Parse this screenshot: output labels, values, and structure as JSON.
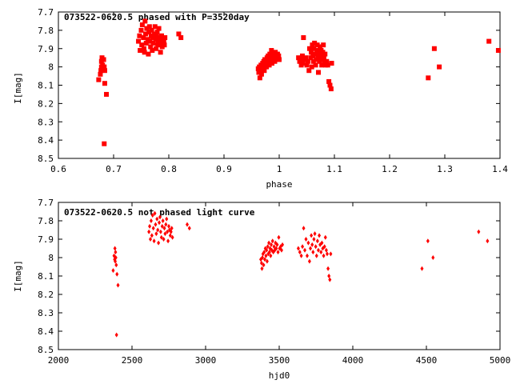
{
  "colors": {
    "points": "#ff0000",
    "frame": "#000000",
    "background": "#ffffff"
  },
  "chart_data": [
    {
      "type": "scatter",
      "title": "073522-0620.5 phased with P=3520day",
      "xlabel": "phase",
      "ylabel": "I[mag]",
      "xlim": [
        0.6,
        1.4
      ],
      "ylim": [
        8.5,
        7.7
      ],
      "y_inverted": true,
      "xticks": [
        "0.6",
        "0.7",
        "0.8",
        "0.9",
        "1",
        "1.1",
        "1.2",
        "1.3",
        "1.4"
      ],
      "yticks": [
        "7.7",
        "7.8",
        "7.9",
        "8",
        "8.1",
        "8.2",
        "8.3",
        "8.4",
        "8.5"
      ],
      "marker": "filled-square",
      "grid": false,
      "series": [
        {
          "points": [
            [
              0.673,
              8.07
            ],
            [
              0.676,
              8.04
            ],
            [
              0.677,
              8.02
            ],
            [
              0.678,
              8.0
            ],
            [
              0.678,
              7.97
            ],
            [
              0.679,
              7.95
            ],
            [
              0.68,
              7.99
            ],
            [
              0.68,
              8.01
            ],
            [
              0.682,
              7.96
            ],
            [
              0.683,
              8.0
            ],
            [
              0.684,
              8.02
            ],
            [
              0.684,
              8.09
            ],
            [
              0.687,
              8.15
            ],
            [
              0.683,
              8.42
            ],
            [
              0.745,
              7.86
            ],
            [
              0.747,
              7.83
            ],
            [
              0.748,
              7.91
            ],
            [
              0.75,
              7.8
            ],
            [
              0.751,
              7.88
            ],
            [
              0.752,
              7.77
            ],
            [
              0.754,
              7.84
            ],
            [
              0.755,
              7.9
            ],
            [
              0.756,
              7.92
            ],
            [
              0.757,
              7.75
            ],
            [
              0.758,
              7.82
            ],
            [
              0.759,
              7.87
            ],
            [
              0.76,
              7.79
            ],
            [
              0.762,
              7.85
            ],
            [
              0.763,
              7.93
            ],
            [
              0.764,
              7.81
            ],
            [
              0.765,
              7.78
            ],
            [
              0.766,
              7.86
            ],
            [
              0.767,
              7.89
            ],
            [
              0.768,
              7.83
            ],
            [
              0.769,
              7.8
            ],
            [
              0.77,
              7.91
            ],
            [
              0.771,
              7.84
            ],
            [
              0.772,
              7.87
            ],
            [
              0.774,
              7.82
            ],
            [
              0.775,
              7.78
            ],
            [
              0.776,
              7.85
            ],
            [
              0.777,
              7.9
            ],
            [
              0.778,
              7.83
            ],
            [
              0.779,
              7.81
            ],
            [
              0.78,
              7.88
            ],
            [
              0.781,
              7.86
            ],
            [
              0.782,
              7.79
            ],
            [
              0.783,
              7.84
            ],
            [
              0.785,
              7.92
            ],
            [
              0.786,
              7.87
            ],
            [
              0.787,
              7.83
            ],
            [
              0.788,
              7.89
            ],
            [
              0.789,
              7.85
            ],
            [
              0.791,
              7.86
            ],
            [
              0.792,
              7.88
            ],
            [
              0.793,
              7.84
            ],
            [
              0.818,
              7.82
            ],
            [
              0.822,
              7.84
            ],
            [
              0.962,
              8.01
            ],
            [
              0.963,
              8.03
            ],
            [
              0.964,
              8.0
            ],
            [
              0.965,
              8.06
            ],
            [
              0.966,
              8.02
            ],
            [
              0.967,
              7.99
            ],
            [
              0.968,
              8.04
            ],
            [
              0.969,
              8.0
            ],
            [
              0.97,
              7.98
            ],
            [
              0.971,
              8.01
            ],
            [
              0.972,
              7.97
            ],
            [
              0.973,
              8.02
            ],
            [
              0.974,
              7.96
            ],
            [
              0.975,
              7.99
            ],
            [
              0.976,
              7.98
            ],
            [
              0.977,
              8.0
            ],
            [
              0.978,
              7.95
            ],
            [
              0.979,
              7.97
            ],
            [
              0.98,
              7.94
            ],
            [
              0.981,
              7.96
            ],
            [
              0.982,
              7.99
            ],
            [
              0.983,
              7.93
            ],
            [
              0.984,
              7.97
            ],
            [
              0.985,
              7.95
            ],
            [
              0.986,
              7.91
            ],
            [
              0.987,
              7.98
            ],
            [
              0.988,
              7.94
            ],
            [
              0.989,
              7.96
            ],
            [
              0.99,
              7.93
            ],
            [
              0.991,
              7.95
            ],
            [
              0.992,
              7.97
            ],
            [
              0.993,
              7.92
            ],
            [
              0.994,
              7.94
            ],
            [
              0.995,
              7.96
            ],
            [
              0.996,
              7.95
            ],
            [
              0.997,
              7.93
            ],
            [
              0.998,
              7.95
            ],
            [
              0.999,
              7.94
            ],
            [
              1.0,
              7.96
            ],
            [
              1.035,
              7.95
            ],
            [
              1.037,
              7.97
            ],
            [
              1.039,
              7.96
            ],
            [
              1.04,
              7.99
            ],
            [
              1.042,
              7.94
            ],
            [
              1.043,
              7.98
            ],
            [
              1.044,
              7.84
            ],
            [
              1.046,
              7.96
            ],
            [
              1.048,
              7.95
            ],
            [
              1.05,
              7.99
            ],
            [
              1.052,
              7.97
            ],
            [
              1.054,
              8.02
            ],
            [
              1.055,
              7.9
            ],
            [
              1.057,
              7.95
            ],
            [
              1.058,
              7.92
            ],
            [
              1.059,
              8.0
            ],
            [
              1.06,
              7.88
            ],
            [
              1.061,
              7.94
            ],
            [
              1.062,
              7.97
            ],
            [
              1.063,
              7.9
            ],
            [
              1.064,
              7.87
            ],
            [
              1.065,
              7.93
            ],
            [
              1.066,
              7.99
            ],
            [
              1.067,
              7.96
            ],
            [
              1.068,
              7.91
            ],
            [
              1.069,
              7.88
            ],
            [
              1.07,
              7.95
            ],
            [
              1.071,
              8.03
            ],
            [
              1.072,
              7.93
            ],
            [
              1.073,
              7.97
            ],
            [
              1.074,
              7.89
            ],
            [
              1.075,
              7.94
            ],
            [
              1.076,
              7.91
            ],
            [
              1.077,
              7.99
            ],
            [
              1.078,
              7.96
            ],
            [
              1.079,
              7.92
            ],
            [
              1.08,
              7.88
            ],
            [
              1.081,
              7.95
            ],
            [
              1.082,
              7.98
            ],
            [
              1.083,
              7.93
            ],
            [
              1.084,
              7.99
            ],
            [
              1.086,
              7.97
            ],
            [
              1.088,
              7.99
            ],
            [
              1.09,
              8.08
            ],
            [
              1.092,
              8.1
            ],
            [
              1.094,
              8.12
            ],
            [
              1.095,
              7.98
            ],
            [
              1.27,
              8.06
            ],
            [
              1.281,
              7.9
            ],
            [
              1.29,
              8.0
            ],
            [
              1.38,
              7.86
            ],
            [
              1.397,
              7.91
            ]
          ]
        }
      ]
    },
    {
      "type": "scatter",
      "title": "073522-0620.5 not phased light curve",
      "xlabel": "hjd0",
      "ylabel": "I[mag]",
      "xlim": [
        2000,
        5000
      ],
      "ylim": [
        8.5,
        7.7
      ],
      "y_inverted": true,
      "xticks": [
        "2000",
        "2500",
        "3000",
        "3500",
        "4000",
        "4500",
        "5000"
      ],
      "yticks": [
        "7.7",
        "7.8",
        "7.9",
        "8",
        "8.1",
        "8.2",
        "8.3",
        "8.4",
        "8.5"
      ],
      "marker": "diamond",
      "grid": false,
      "series": [
        {
          "points": [
            [
              2372,
              8.07
            ],
            [
              2378,
              7.99
            ],
            [
              2382,
              8.01
            ],
            [
              2384,
              7.95
            ],
            [
              2386,
              8.02
            ],
            [
              2388,
              7.97
            ],
            [
              2390,
              8.0
            ],
            [
              2393,
              8.04
            ],
            [
              2398,
              8.09
            ],
            [
              2405,
              8.15
            ],
            [
              2395,
              8.42
            ],
            [
              2615,
              7.86
            ],
            [
              2620,
              7.83
            ],
            [
              2625,
              7.9
            ],
            [
              2630,
              7.8
            ],
            [
              2635,
              7.88
            ],
            [
              2640,
              7.77
            ],
            [
              2645,
              7.84
            ],
            [
              2650,
              7.91
            ],
            [
              2655,
              7.76
            ],
            [
              2660,
              7.82
            ],
            [
              2665,
              7.87
            ],
            [
              2670,
              7.79
            ],
            [
              2675,
              7.85
            ],
            [
              2680,
              7.92
            ],
            [
              2685,
              7.81
            ],
            [
              2690,
              7.78
            ],
            [
              2695,
              7.86
            ],
            [
              2700,
              7.89
            ],
            [
              2705,
              7.83
            ],
            [
              2710,
              7.8
            ],
            [
              2715,
              7.9
            ],
            [
              2720,
              7.84
            ],
            [
              2725,
              7.87
            ],
            [
              2730,
              7.82
            ],
            [
              2735,
              7.79
            ],
            [
              2740,
              7.86
            ],
            [
              2745,
              7.91
            ],
            [
              2750,
              7.83
            ],
            [
              2755,
              7.85
            ],
            [
              2760,
              7.88
            ],
            [
              2765,
              7.86
            ],
            [
              2770,
              7.84
            ],
            [
              2775,
              7.89
            ],
            [
              2875,
              7.82
            ],
            [
              2890,
              7.84
            ],
            [
              3375,
              8.01
            ],
            [
              3380,
              8.03
            ],
            [
              3383,
              8.06
            ],
            [
              3386,
              8.0
            ],
            [
              3390,
              7.98
            ],
            [
              3394,
              8.04
            ],
            [
              3398,
              7.97
            ],
            [
              3402,
              8.01
            ],
            [
              3406,
              7.95
            ],
            [
              3410,
              7.99
            ],
            [
              3414,
              7.96
            ],
            [
              3418,
              8.02
            ],
            [
              3422,
              7.94
            ],
            [
              3426,
              7.98
            ],
            [
              3430,
              7.92
            ],
            [
              3434,
              7.97
            ],
            [
              3438,
              7.95
            ],
            [
              3442,
              7.99
            ],
            [
              3446,
              7.93
            ],
            [
              3450,
              7.96
            ],
            [
              3455,
              7.91
            ],
            [
              3460,
              7.97
            ],
            [
              3465,
              7.94
            ],
            [
              3470,
              7.96
            ],
            [
              3475,
              7.92
            ],
            [
              3480,
              7.95
            ],
            [
              3486,
              7.93
            ],
            [
              3492,
              7.97
            ],
            [
              3497,
              7.89
            ],
            [
              3503,
              7.95
            ],
            [
              3510,
              7.94
            ],
            [
              3516,
              7.96
            ],
            [
              3522,
              7.93
            ],
            [
              3630,
              7.95
            ],
            [
              3640,
              7.97
            ],
            [
              3650,
              7.99
            ],
            [
              3658,
              7.94
            ],
            [
              3666,
              7.84
            ],
            [
              3674,
              7.96
            ],
            [
              3682,
              7.9
            ],
            [
              3690,
              7.99
            ],
            [
              3698,
              7.92
            ],
            [
              3706,
              8.02
            ],
            [
              3712,
              7.95
            ],
            [
              3718,
              7.88
            ],
            [
              3724,
              7.93
            ],
            [
              3730,
              7.97
            ],
            [
              3736,
              7.9
            ],
            [
              3742,
              7.87
            ],
            [
              3748,
              7.94
            ],
            [
              3754,
              7.99
            ],
            [
              3760,
              7.91
            ],
            [
              3766,
              7.96
            ],
            [
              3772,
              7.88
            ],
            [
              3778,
              7.93
            ],
            [
              3784,
              7.97
            ],
            [
              3790,
              7.92
            ],
            [
              3796,
              7.95
            ],
            [
              3802,
              7.99
            ],
            [
              3808,
              7.94
            ],
            [
              3814,
              7.89
            ],
            [
              3820,
              7.96
            ],
            [
              3826,
              7.98
            ],
            [
              3832,
              8.06
            ],
            [
              3838,
              8.1
            ],
            [
              3844,
              8.12
            ],
            [
              3850,
              7.98
            ],
            [
              4470,
              8.06
            ],
            [
              4510,
              7.91
            ],
            [
              4545,
              8.0
            ],
            [
              4855,
              7.86
            ],
            [
              4915,
              7.91
            ]
          ]
        }
      ]
    }
  ]
}
